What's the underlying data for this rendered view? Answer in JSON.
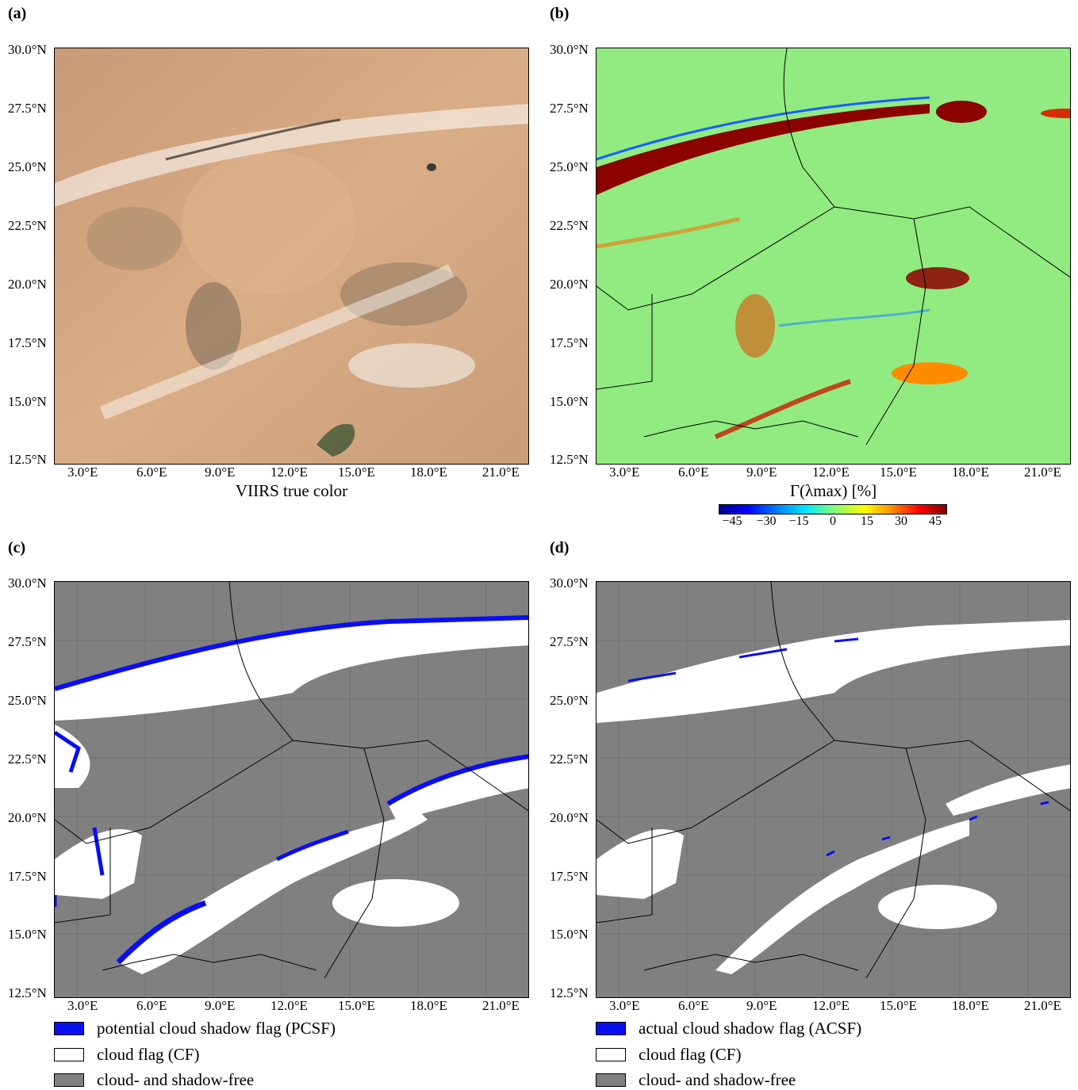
{
  "panels": [
    {
      "label": "(a)",
      "caption": "VIIRS true color"
    },
    {
      "label": "(b)",
      "caption": "Γ(λmax) [%]"
    },
    {
      "label": "(c)"
    },
    {
      "label": "(d)"
    }
  ],
  "lat_ticks": [
    "30.0°N",
    "27.5°N",
    "25.0°N",
    "22.5°N",
    "20.0°N",
    "17.5°N",
    "15.0°N",
    "12.5°N"
  ],
  "lon_ticks": [
    "3.0°E",
    "6.0°E",
    "9.0°E",
    "12.0°E",
    "15.0°E",
    "18.0°E",
    "21.0°E"
  ],
  "colorbar": {
    "ticks": [
      "−45",
      "−30",
      "−15",
      "0",
      "15",
      "30",
      "45"
    ],
    "range": [
      -50,
      50
    ]
  },
  "legend_c": [
    {
      "label": "potential cloud shadow flag (PCSF)",
      "color": "#0a0ff0"
    },
    {
      "label": "cloud flag (CF)",
      "color": "#ffffff"
    },
    {
      "label": "cloud- and shadow-free",
      "color": "#808080"
    }
  ],
  "legend_d": [
    {
      "label": "actual cloud shadow flag (ACSF)",
      "color": "#0a0ff0"
    },
    {
      "label": "cloud flag (CF)",
      "color": "#ffffff"
    },
    {
      "label": "cloud- and shadow-free",
      "color": "#808080"
    }
  ],
  "colors": {
    "desert": "#d2a57e",
    "free": "#808080",
    "cloud": "#ffffff",
    "shadow": "#0a0ff0",
    "gamma_mid": "#7ee87e"
  }
}
